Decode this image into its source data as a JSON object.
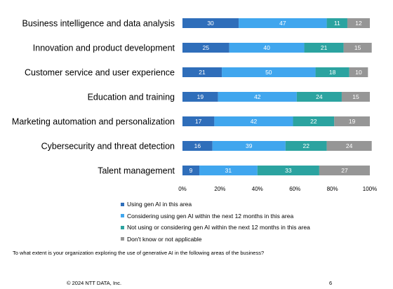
{
  "chart_data": {
    "type": "bar",
    "orientation": "horizontal",
    "stacked": true,
    "title": "",
    "xlabel": "",
    "ylabel": "",
    "xlim": [
      0,
      100
    ],
    "x_ticks": [
      "0%",
      "20%",
      "40%",
      "60%",
      "80%",
      "100%"
    ],
    "grid": false,
    "categories": [
      "Business intelligence and data analysis",
      "Innovation and product development",
      "Customer service and user experience",
      "Education and training",
      "Marketing automation and personalization",
      "Cybersecurity and threat detection",
      "Talent management"
    ],
    "series": [
      {
        "name": "Using gen AI in this area",
        "color": "#2F6EBA",
        "values": [
          30,
          25,
          21,
          19,
          17,
          16,
          9
        ]
      },
      {
        "name": "Considering using gen AI within the next 12 months in this area",
        "color": "#40A6EE",
        "values": [
          47,
          40,
          50,
          42,
          42,
          39,
          31
        ]
      },
      {
        "name": "Not using or considering gen AI within the next 12 months in this area",
        "color": "#2BA3A0",
        "values": [
          11,
          21,
          18,
          24,
          22,
          22,
          33
        ]
      },
      {
        "name": "Don't know or not applicable",
        "color": "#969696",
        "values": [
          12,
          15,
          10,
          15,
          19,
          24,
          27
        ]
      }
    ],
    "legend_position": "bottom-left"
  },
  "question": "To what extent is your organization exploring the use of generative AI in the following areas of the business?",
  "footer": {
    "copyright": "© 2024 NTT DATA, Inc.",
    "page_number": "6"
  }
}
